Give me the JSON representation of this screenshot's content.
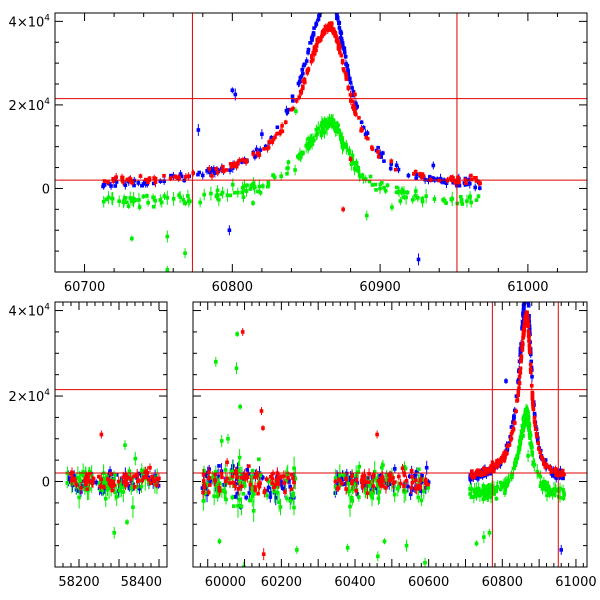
{
  "chart_data": [
    {
      "type": "scatter",
      "title": "",
      "xlabel": "",
      "ylabel": "",
      "xlim": [
        60680,
        61040
      ],
      "ylim": [
        -20000,
        42000
      ],
      "x_ticks": [
        {
          "v": 60700,
          "label": "60700"
        },
        {
          "v": 60800,
          "label": "60800"
        },
        {
          "v": 60900,
          "label": "60900"
        },
        {
          "v": 61000,
          "label": "61000"
        }
      ],
      "y_ticks": [
        {
          "v": 0,
          "mant": "0",
          "exp": ""
        },
        {
          "v": 20000,
          "mant": "2×10",
          "exp": "4"
        },
        {
          "v": 40000,
          "mant": "4×10",
          "exp": "4"
        }
      ],
      "hlines": [
        2000,
        21500
      ],
      "vlines": [
        60773,
        60952
      ],
      "segments": [
        [
          60680,
          61040
        ]
      ],
      "scatter_points": [
        {
          "x": 60880,
          "y": 7000,
          "color": "#ff0000"
        },
        {
          "x": 60936,
          "y": 5500,
          "color": "#0000ff"
        },
        {
          "x": 60820,
          "y": 13000,
          "color": "#0000ff"
        },
        {
          "x": 60802,
          "y": 22500,
          "color": "#0000ff"
        },
        {
          "x": 60800,
          "y": 23500,
          "color": "#0000ff"
        },
        {
          "x": 60883,
          "y": 22500,
          "color": "#ff0000"
        },
        {
          "x": 60768,
          "y": -15500,
          "color": "#00ee00"
        },
        {
          "x": 60756,
          "y": -11500,
          "color": "#00ee00"
        },
        {
          "x": 60732,
          "y": -12000,
          "color": "#00ee00"
        },
        {
          "x": 60756,
          "y": -19500,
          "color": "#00ee00"
        },
        {
          "x": 60798,
          "y": -10000,
          "color": "#0000ff"
        },
        {
          "x": 60926,
          "y": -17000,
          "color": "#0000ff"
        },
        {
          "x": 60814,
          "y": -3500,
          "color": "#00ee00"
        },
        {
          "x": 60843,
          "y": 18500,
          "color": "#00ee00"
        },
        {
          "x": 60891,
          "y": -6500,
          "color": "#00ee00"
        },
        {
          "x": 60777,
          "y": 14000,
          "color": "#0000ff"
        },
        {
          "x": 60875,
          "y": -5000,
          "color": "#ff0000"
        },
        {
          "x": 60908,
          "y": -4500,
          "color": "#00ee00"
        },
        {
          "x": 60748,
          "y": 1500,
          "color": "#ff0000"
        }
      ],
      "series": [
        {
          "name": "blue",
          "color": "#0000ff",
          "peak": 45000,
          "offset": 0,
          "spread": 1.0
        },
        {
          "name": "green",
          "color": "#00ee00",
          "peak": 19000,
          "offset": -2500,
          "spread": 1.6
        },
        {
          "name": "red",
          "color": "#ff0000",
          "peak": 38000,
          "offset": 800,
          "spread": 0.8
        }
      ],
      "model": {
        "t0": 60866,
        "x_start": 60712,
        "x_end": 60968,
        "width_left": 24,
        "width_right": 16
      }
    },
    {
      "type": "scatter",
      "title": "",
      "xlabel": "",
      "ylabel": "",
      "ylim": [
        -20000,
        42000
      ],
      "x_ticks": [
        {
          "v": 58200,
          "label": "58200"
        },
        {
          "v": 58400,
          "label": "58400"
        },
        {
          "v": 60000,
          "label": "60000"
        },
        {
          "v": 60200,
          "label": "60200"
        },
        {
          "v": 60400,
          "label": "60400"
        },
        {
          "v": 60600,
          "label": "60600"
        },
        {
          "v": 60800,
          "label": "60800"
        },
        {
          "v": 61000,
          "label": "61000"
        }
      ],
      "y_ticks": [
        {
          "v": 0,
          "mant": "0",
          "exp": ""
        },
        {
          "v": 20000,
          "mant": "2×10",
          "exp": "4"
        },
        {
          "v": 40000,
          "mant": "4×10",
          "exp": "4"
        }
      ],
      "hlines": [
        2000,
        21500
      ],
      "vlines": [
        60773,
        60952
      ],
      "segments": [
        [
          58140,
          58420
        ],
        [
          59960,
          61030
        ]
      ],
      "scatter_points": [
        {
          "x": 60080,
          "y": 34500,
          "color": "#00ee00"
        },
        {
          "x": 60095,
          "y": 35000,
          "color": "#ff0000"
        },
        {
          "x": 60022,
          "y": 28000,
          "color": "#00ee00"
        },
        {
          "x": 60078,
          "y": 26500,
          "color": "#00ee00"
        },
        {
          "x": 60088,
          "y": 17500,
          "color": "#00ee00"
        },
        {
          "x": 60146,
          "y": 16500,
          "color": "#ff0000"
        },
        {
          "x": 60055,
          "y": 10000,
          "color": "#00ee00"
        },
        {
          "x": 60038,
          "y": 9500,
          "color": "#00ee00"
        },
        {
          "x": 60150,
          "y": 12500,
          "color": "#ff0000"
        },
        {
          "x": 58256,
          "y": 11000,
          "color": "#ff0000"
        },
        {
          "x": 58315,
          "y": 8500,
          "color": "#00ee00"
        },
        {
          "x": 58288,
          "y": -12000,
          "color": "#00ee00"
        },
        {
          "x": 58320,
          "y": -9500,
          "color": "#00ee00"
        },
        {
          "x": 60242,
          "y": -16000,
          "color": "#00ee00"
        },
        {
          "x": 60098,
          "y": -20000,
          "color": "#00ee00"
        },
        {
          "x": 60152,
          "y": -17000,
          "color": "#ff0000"
        },
        {
          "x": 60032,
          "y": -14000,
          "color": "#00ee00"
        },
        {
          "x": 60460,
          "y": 11000,
          "color": "#ff0000"
        },
        {
          "x": 60462,
          "y": -17500,
          "color": "#00ee00"
        },
        {
          "x": 60540,
          "y": -15000,
          "color": "#00ee00"
        },
        {
          "x": 60480,
          "y": -14000,
          "color": "#00ee00"
        },
        {
          "x": 60380,
          "y": -15500,
          "color": "#00ee00"
        },
        {
          "x": 60590,
          "y": -19000,
          "color": "#00ee00"
        },
        {
          "x": 60750,
          "y": -13000,
          "color": "#00ee00"
        },
        {
          "x": 60730,
          "y": -14500,
          "color": "#00ee00"
        },
        {
          "x": 60765,
          "y": -12000,
          "color": "#00ee00"
        },
        {
          "x": 60960,
          "y": -16000,
          "color": "#0000ff"
        },
        {
          "x": 60870,
          "y": 6000,
          "color": "#00ee00"
        },
        {
          "x": 60810,
          "y": 23500,
          "color": "#0000ff"
        }
      ],
      "series": [
        {
          "name": "blue",
          "color": "#0000ff",
          "peak": 45000,
          "offset": 0,
          "spread": 1.0
        },
        {
          "name": "green",
          "color": "#00ee00",
          "peak": 19000,
          "offset": -2500,
          "spread": 1.6
        },
        {
          "name": "red",
          "color": "#ff0000",
          "peak": 38000,
          "offset": 800,
          "spread": 0.8
        }
      ],
      "seasons": [
        {
          "x_start": 58170,
          "x_end": 58400,
          "scatter": 4000
        },
        {
          "x_start": 59985,
          "x_end": 60240,
          "scatter": 6000
        },
        {
          "x_start": 60345,
          "x_end": 60600,
          "scatter": 4500
        }
      ],
      "model": {
        "t0": 60866,
        "x_start": 60712,
        "x_end": 60968,
        "width_left": 24,
        "width_right": 16
      }
    }
  ]
}
